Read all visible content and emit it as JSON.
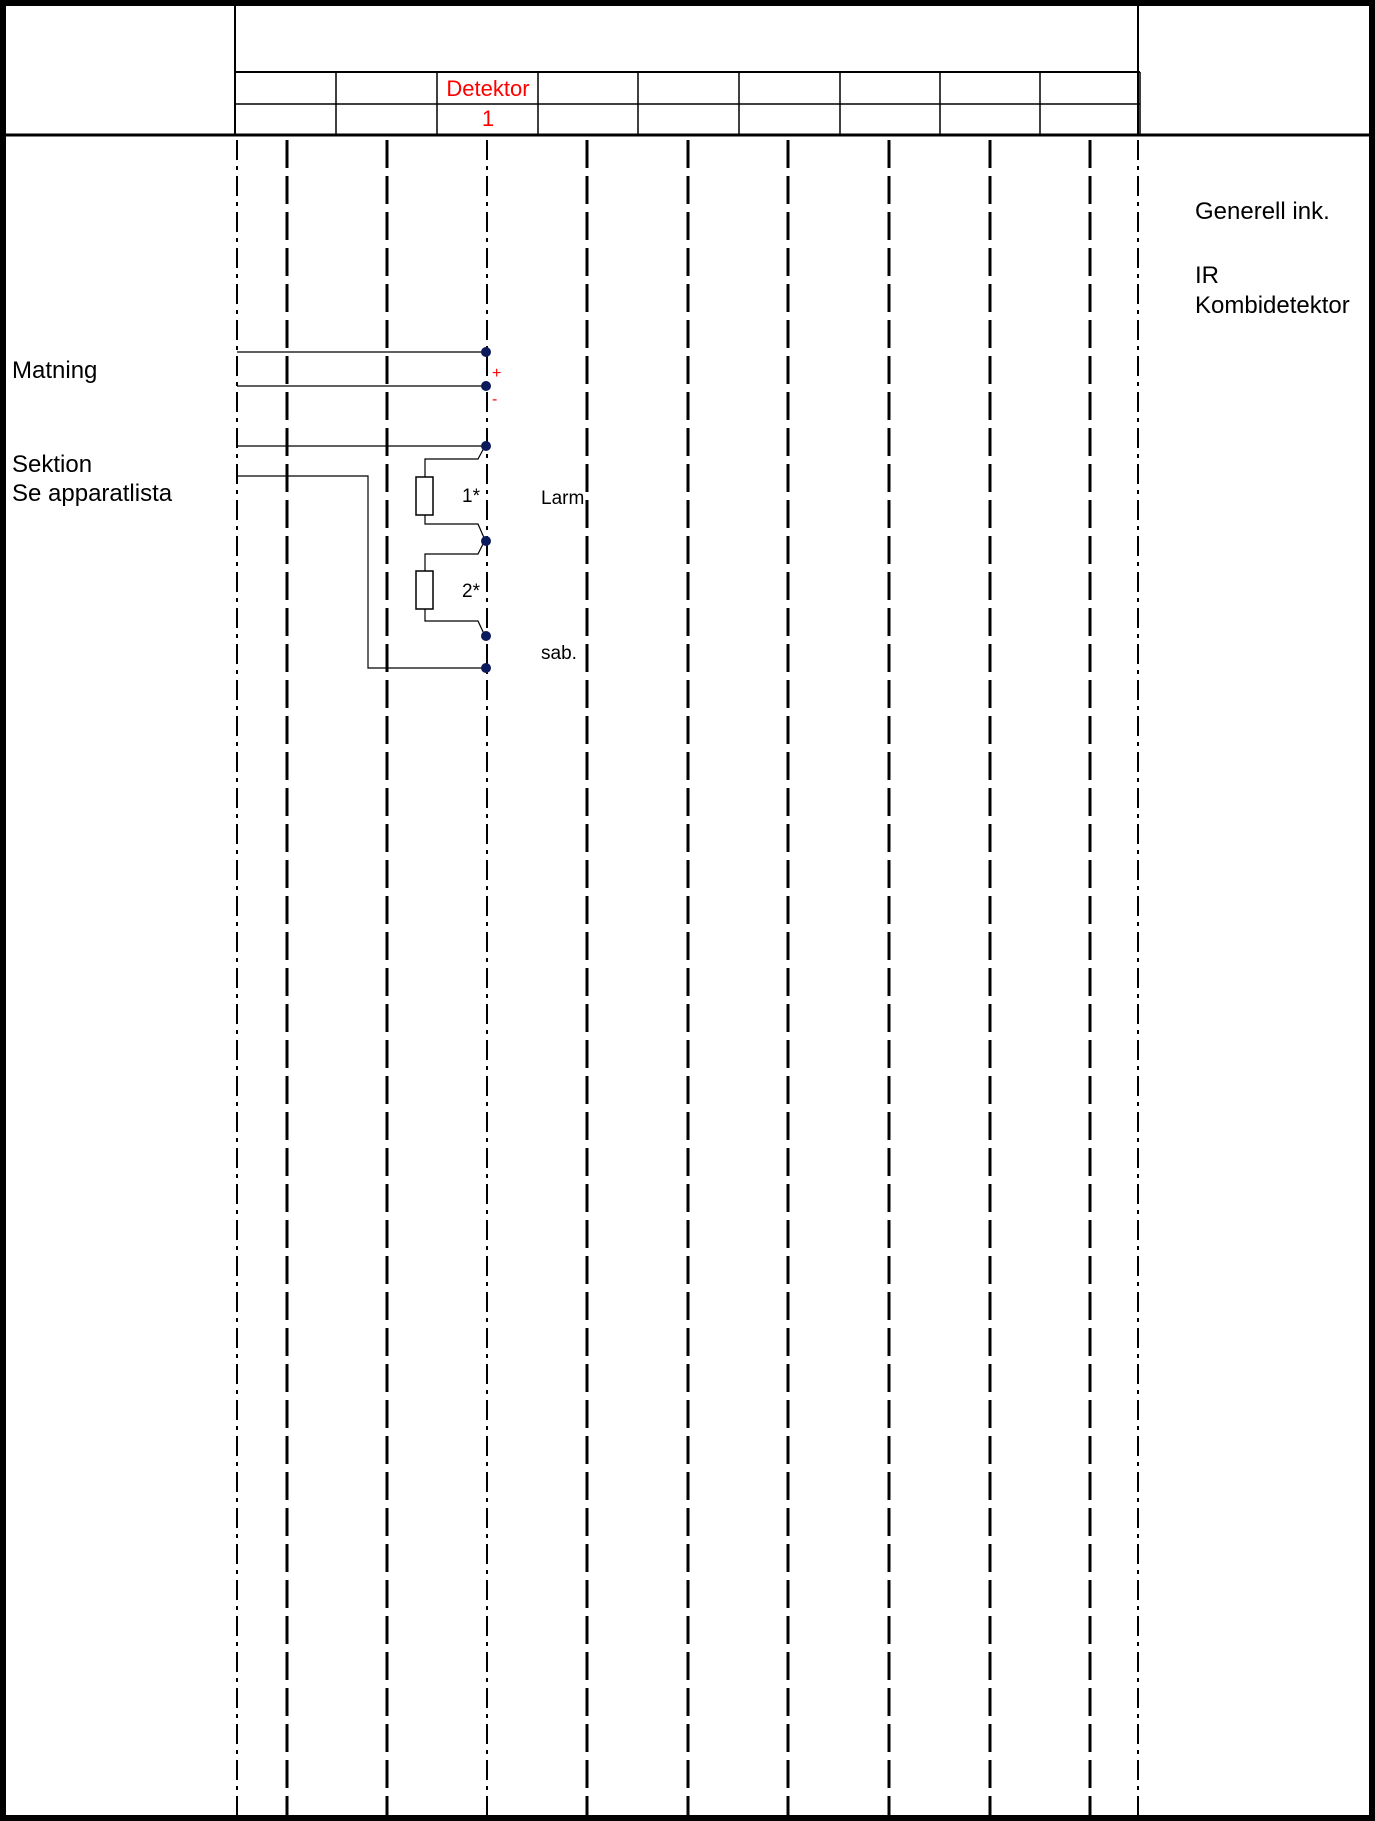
{
  "header": {
    "column_titles": [
      "",
      "",
      "Detektor",
      "",
      "",
      "",
      "",
      "",
      "",
      ""
    ],
    "column_numbers": [
      "",
      "",
      "1",
      "",
      "",
      "",
      "",
      "",
      "",
      ""
    ]
  },
  "left_labels": {
    "supply": "Matning",
    "section": "Sektion",
    "section_note": "Se apparatlista"
  },
  "right_notes": {
    "general": "Generell ink.",
    "device_line1": "IR",
    "device_line2": "Kombidetektor"
  },
  "terminals": {
    "plus": "+",
    "minus": "-"
  },
  "resistors": {
    "r1": "1*",
    "r2": "2*"
  },
  "signals": {
    "alarm": "Larm",
    "sabotage": "sab."
  },
  "colors": {
    "line": "#000000",
    "highlight": "#ff0000",
    "terminal_dot": "#0b1a5c"
  }
}
